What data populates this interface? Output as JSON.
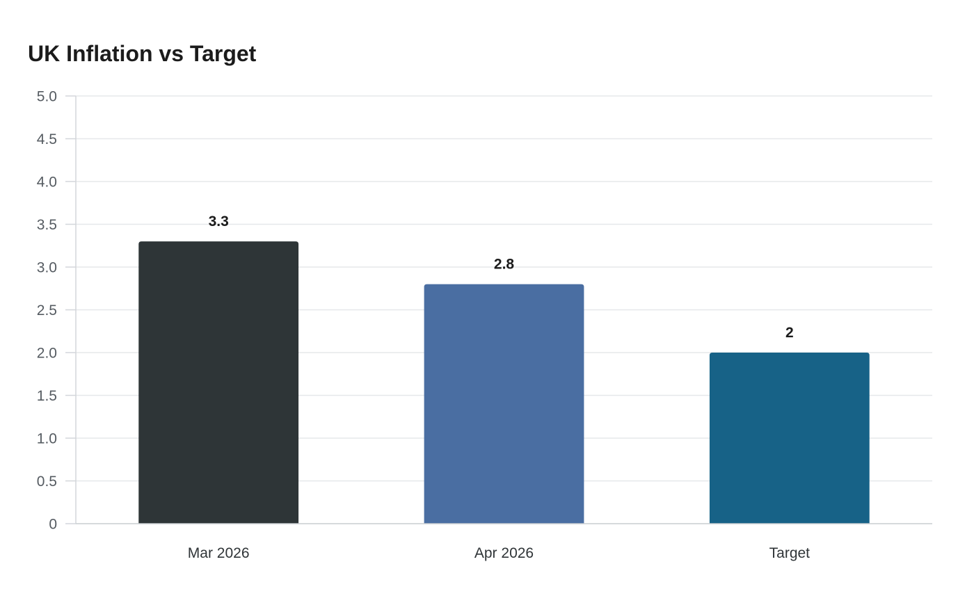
{
  "chart_data": {
    "type": "bar",
    "title": "UK Inflation vs Target",
    "categories": [
      "Mar 2026",
      "Apr 2026",
      "Target"
    ],
    "values": [
      3.3,
      2.8,
      2
    ],
    "value_labels": [
      "3.3",
      "2.8",
      "2"
    ],
    "bar_colors": [
      "#2e3537",
      "#4a6ea2",
      "#176287"
    ],
    "xlabel": "",
    "ylabel": "",
    "ylim": [
      0,
      5
    ],
    "y_ticks": [
      {
        "value": 0,
        "label": "0"
      },
      {
        "value": 0.5,
        "label": "0.5"
      },
      {
        "value": 1,
        "label": "1.0"
      },
      {
        "value": 1.5,
        "label": "1.5"
      },
      {
        "value": 2,
        "label": "2.0"
      },
      {
        "value": 2.5,
        "label": "2.5"
      },
      {
        "value": 3,
        "label": "3.0"
      },
      {
        "value": 3.5,
        "label": "3.5"
      },
      {
        "value": 4,
        "label": "4.0"
      },
      {
        "value": 4.5,
        "label": "4.5"
      },
      {
        "value": 5,
        "label": "5.0"
      }
    ],
    "grid": true,
    "legend": "none"
  }
}
